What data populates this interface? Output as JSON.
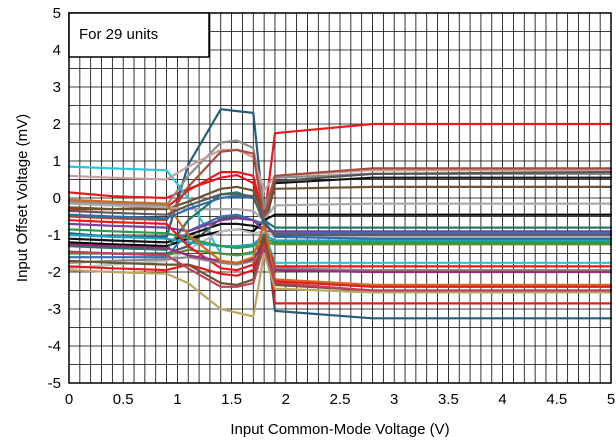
{
  "chart_data": {
    "type": "line",
    "title": "",
    "xlabel": "Input Common-Mode Voltage (V)",
    "ylabel": "Input Offset Voltage (mV)",
    "xlim": [
      0,
      5
    ],
    "ylim": [
      -5,
      5
    ],
    "x_ticks": [
      0,
      0.5,
      1,
      1.5,
      2,
      2.5,
      3,
      3.5,
      4,
      4.5,
      5
    ],
    "y_ticks": [
      -5,
      -4,
      -3,
      -2,
      -1,
      0,
      1,
      2,
      3,
      4,
      5
    ],
    "x_tick_labels": [
      "0",
      "0.5",
      "1",
      "1.5",
      "2",
      "2.5",
      "3",
      "3.5",
      "4",
      "4.5",
      "5"
    ],
    "y_tick_labels": [
      "-5",
      "-4",
      "-3",
      "-2",
      "-1",
      "0",
      "1",
      "2",
      "3",
      "4",
      "5"
    ],
    "grid": "on",
    "annotation": "For 29 units",
    "annotation_position": "top-left",
    "x": [
      0,
      0.4,
      0.9,
      1.1,
      1.4,
      1.55,
      1.7,
      1.8,
      1.9,
      2.8,
      5
    ],
    "series": [
      {
        "color": "#e8191d",
        "values": [
          0.15,
          0.05,
          0.0,
          0.25,
          0.55,
          0.62,
          0.4,
          -0.6,
          1.75,
          2.0,
          2.0
        ]
      },
      {
        "color": "#245f7a",
        "values": [
          -0.95,
          -1.05,
          -1.05,
          0.9,
          2.4,
          2.35,
          2.3,
          -0.5,
          -3.05,
          -3.25,
          -3.25
        ]
      },
      {
        "color": "#29c5d8",
        "values": [
          0.85,
          0.8,
          0.75,
          0.0,
          -1.5,
          -1.55,
          -1.5,
          -0.9,
          -1.75,
          -1.75,
          -1.75
        ]
      },
      {
        "color": "#8c8c8c",
        "values": [
          -0.1,
          -0.15,
          -0.2,
          0.6,
          1.5,
          1.55,
          1.35,
          -0.3,
          0.55,
          0.65,
          0.65
        ]
      },
      {
        "color": "#c9a0a0",
        "values": [
          0.6,
          0.55,
          0.5,
          0.85,
          1.3,
          1.3,
          1.1,
          0.2,
          0.6,
          0.75,
          0.75
        ]
      },
      {
        "color": "#e8191d",
        "values": [
          -0.3,
          -0.3,
          -0.25,
          0.2,
          0.7,
          0.7,
          0.6,
          -0.6,
          -2.85,
          -2.85,
          -2.85
        ]
      },
      {
        "color": "#111111",
        "values": [
          -1.1,
          -1.15,
          -1.2,
          -1.0,
          -0.7,
          -0.7,
          -0.75,
          -0.85,
          0.4,
          0.55,
          0.55
        ]
      },
      {
        "color": "#555555",
        "values": [
          -1.45,
          -1.5,
          -1.5,
          -1.3,
          -0.55,
          -0.5,
          -0.6,
          -0.85,
          0.45,
          0.65,
          0.7
        ]
      },
      {
        "color": "#6b5432",
        "values": [
          -0.25,
          -0.3,
          -0.3,
          -0.1,
          0.25,
          0.3,
          0.2,
          -0.5,
          0.25,
          0.3,
          0.3
        ]
      },
      {
        "color": "#a84b3a",
        "values": [
          -0.5,
          -0.55,
          -0.6,
          0.3,
          1.25,
          1.3,
          1.2,
          -0.6,
          0.6,
          0.8,
          0.8
        ]
      },
      {
        "color": "#a9a9a9",
        "values": [
          -0.15,
          -0.2,
          -0.25,
          -0.3,
          -0.3,
          -0.3,
          -0.35,
          -0.6,
          -0.2,
          -0.15,
          -0.15
        ]
      },
      {
        "color": "#000000",
        "values": [
          -1.2,
          -1.25,
          -1.3,
          -1.1,
          -0.9,
          -0.85,
          -0.9,
          -0.6,
          -0.45,
          -0.45,
          -0.45
        ]
      },
      {
        "color": "#1f7a6a",
        "values": [
          -1.3,
          -1.35,
          -1.4,
          -0.6,
          0.1,
          0.15,
          0.0,
          -0.6,
          -0.8,
          -0.8,
          -0.8
        ]
      },
      {
        "color": "#3a6fb0",
        "values": [
          -1.6,
          -1.6,
          -1.6,
          -0.9,
          -0.5,
          -0.45,
          -0.6,
          -0.7,
          -0.95,
          -0.95,
          -0.95
        ]
      },
      {
        "color": "#7b3fa0",
        "values": [
          -0.7,
          -0.75,
          -0.8,
          -0.9,
          -0.6,
          -0.55,
          -0.6,
          -0.9,
          -0.9,
          -0.9,
          -0.9
        ]
      },
      {
        "color": "#c0bfbf",
        "values": [
          -1.9,
          -1.8,
          -1.7,
          -1.4,
          -0.9,
          -0.85,
          -0.95,
          -0.9,
          -1.05,
          -1.05,
          -1.05
        ]
      },
      {
        "color": "#1aa7c7",
        "values": [
          -1.0,
          -1.05,
          -1.1,
          -1.2,
          -1.3,
          -1.3,
          -1.25,
          -1.0,
          -1.15,
          -1.15,
          -1.15
        ]
      },
      {
        "color": "#2d9a4e",
        "values": [
          -0.85,
          -0.9,
          -0.95,
          -1.1,
          -1.3,
          -1.35,
          -1.3,
          -1.1,
          -1.2,
          -1.2,
          -1.2
        ]
      },
      {
        "color": "#5a8c2e",
        "values": [
          -1.5,
          -1.5,
          -1.55,
          -1.4,
          -1.5,
          -1.55,
          -1.45,
          -1.2,
          -1.25,
          -1.25,
          -1.25
        ]
      },
      {
        "color": "#e8191d",
        "values": [
          -0.6,
          -0.65,
          -0.7,
          -1.3,
          -1.9,
          -1.95,
          -1.8,
          -1.0,
          -1.85,
          -1.85,
          -1.85
        ]
      },
      {
        "color": "#888888",
        "values": [
          -1.75,
          -1.7,
          -1.65,
          -1.6,
          -1.75,
          -1.8,
          -1.7,
          -1.3,
          -1.9,
          -1.95,
          -1.95
        ]
      },
      {
        "color": "#9c2a7a",
        "values": [
          -1.25,
          -1.3,
          -1.35,
          -1.55,
          -1.7,
          -1.75,
          -1.65,
          -1.2,
          -1.95,
          -2.0,
          -2.0
        ]
      },
      {
        "color": "#d2691e",
        "values": [
          -0.05,
          -0.1,
          -0.15,
          -1.0,
          -1.7,
          -1.75,
          -1.6,
          -0.7,
          -2.2,
          -2.35,
          -2.35
        ]
      },
      {
        "color": "#e8191d",
        "values": [
          -1.85,
          -1.9,
          -1.95,
          -1.8,
          -2.05,
          -2.1,
          -1.95,
          -1.2,
          -2.25,
          -2.4,
          -2.4
        ]
      },
      {
        "color": "#6b5432",
        "values": [
          -1.7,
          -1.75,
          -1.8,
          -1.8,
          -2.3,
          -2.35,
          -2.2,
          -1.0,
          -2.35,
          -2.5,
          -2.5
        ]
      },
      {
        "color": "#b8a860",
        "values": [
          -1.95,
          -2.0,
          -2.05,
          -2.3,
          -3.0,
          -3.1,
          -3.2,
          -1.5,
          -2.45,
          -2.55,
          -2.55
        ]
      },
      {
        "color": "#c04060",
        "values": [
          -1.45,
          -1.5,
          -1.55,
          -1.9,
          -2.4,
          -2.4,
          -2.3,
          -1.3,
          -2.3,
          -2.5,
          -2.5
        ]
      },
      {
        "color": "#2a6db0",
        "values": [
          -0.45,
          -0.5,
          -0.55,
          -0.3,
          0.0,
          0.05,
          0.0,
          -0.6,
          -1.05,
          -1.1,
          -1.1
        ]
      },
      {
        "color": "#5c5c5c",
        "values": [
          -0.35,
          -0.4,
          -0.45,
          -0.2,
          0.1,
          0.1,
          0.05,
          -0.7,
          -1.0,
          -1.0,
          -1.0
        ]
      }
    ]
  }
}
